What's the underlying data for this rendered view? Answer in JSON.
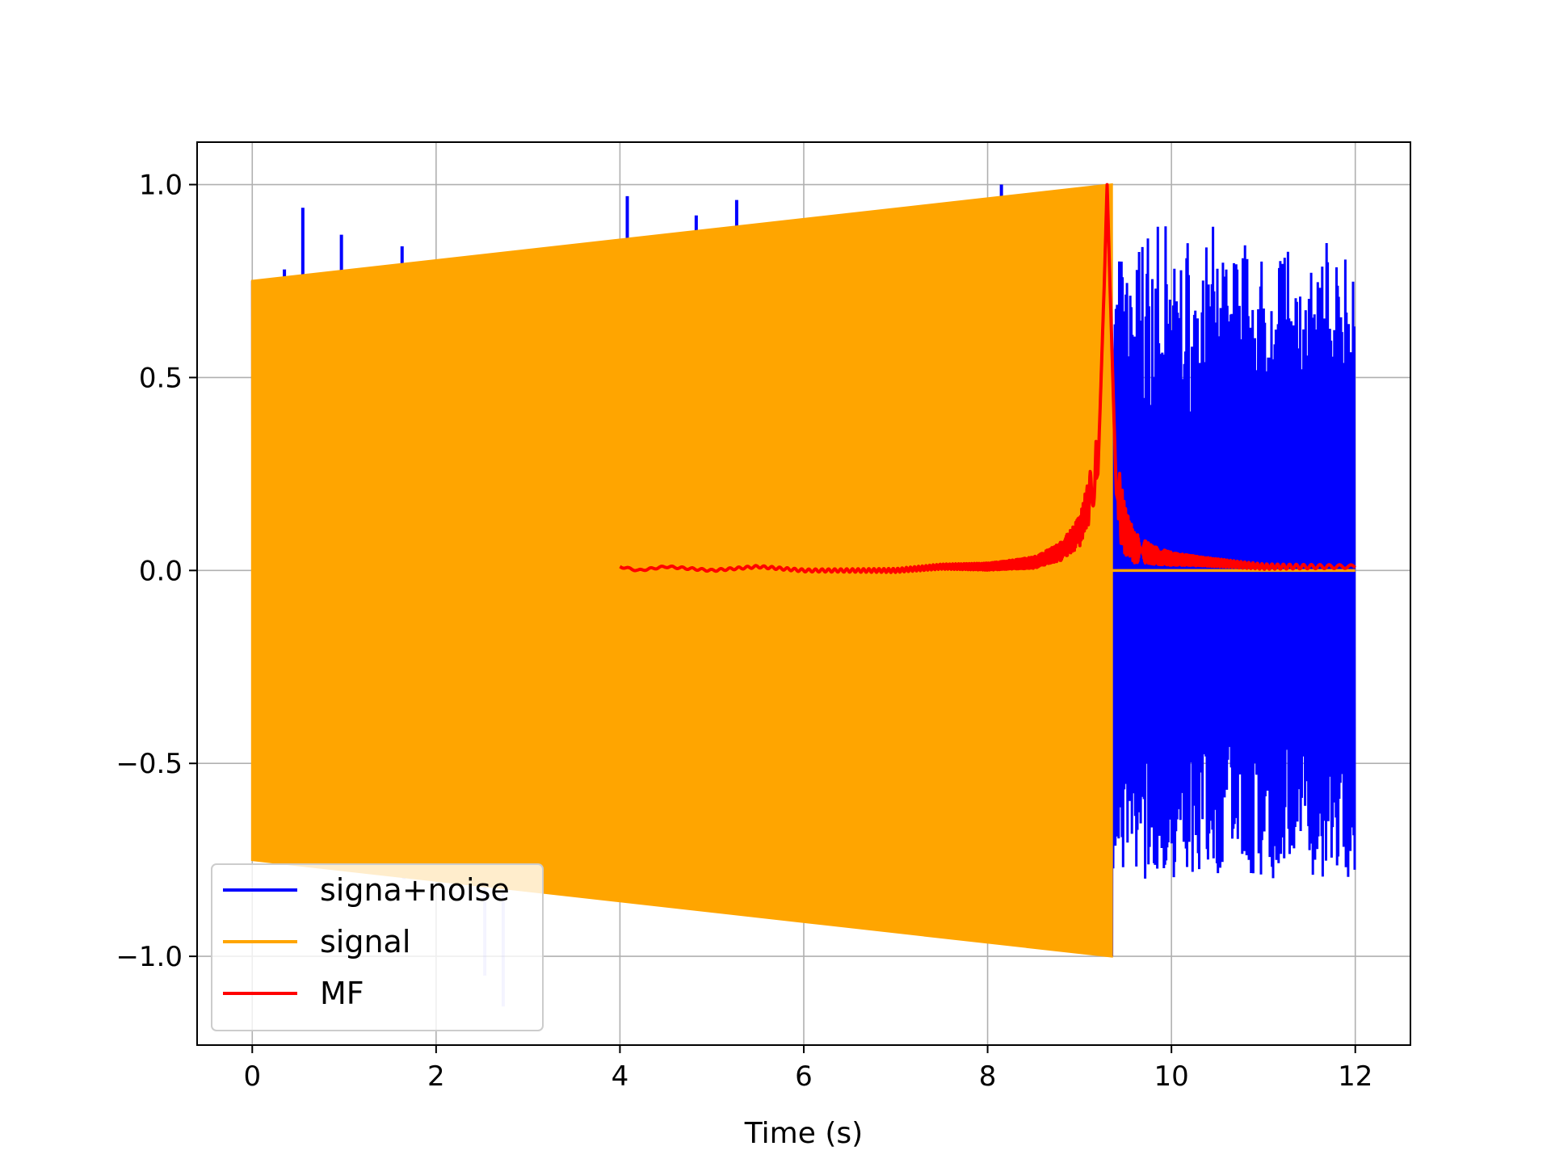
{
  "chart_data": {
    "type": "line",
    "title": "",
    "xlabel": "Time (s)",
    "ylabel": "",
    "xlim": [
      -0.6,
      12.6
    ],
    "ylim": [
      -1.23,
      1.11
    ],
    "xticks": [
      0,
      2,
      4,
      6,
      8,
      10,
      12
    ],
    "xtick_labels": [
      "0",
      "2",
      "4",
      "6",
      "8",
      "10",
      "12"
    ],
    "yticks": [
      -1.0,
      -0.5,
      0.0,
      0.5,
      1.0
    ],
    "ytick_labels": [
      "−1.0",
      "−0.5",
      "0.0",
      "0.5",
      "1.0"
    ],
    "grid": true,
    "legend_position": "lower-left",
    "series": [
      {
        "name": "signa+noise",
        "color": "#0000ff",
        "description_envelope": {
          "x": [
            0,
            9.35,
            9.35,
            12
          ],
          "upper": [
            0.75,
            1.0,
            0.65,
            0.6
          ],
          "lower": [
            -0.75,
            -1.0,
            -0.75,
            -0.75
          ]
        },
        "spikes": [
          {
            "x": 0.35,
            "y": 0.78
          },
          {
            "x": 0.55,
            "y": 0.94
          },
          {
            "x": 0.97,
            "y": 0.87
          },
          {
            "x": 1.63,
            "y": 0.84
          },
          {
            "x": 4.08,
            "y": 0.97
          },
          {
            "x": 4.7,
            "y": 0.84
          },
          {
            "x": 4.83,
            "y": 0.92
          },
          {
            "x": 5.27,
            "y": 0.96
          },
          {
            "x": 8.15,
            "y": 1.0
          },
          {
            "x": 1.65,
            "y": -0.8
          },
          {
            "x": 1.73,
            "y": -0.8
          },
          {
            "x": 2.53,
            "y": -1.05
          },
          {
            "x": 2.73,
            "y": -1.13
          }
        ]
      },
      {
        "name": "signal",
        "color": "#ffa500",
        "description_envelope": {
          "x": [
            0,
            9.35,
            9.35,
            12
          ],
          "upper": [
            0.75,
            1.0,
            0.0,
            0.0
          ],
          "lower": [
            -0.75,
            -1.0,
            0.0,
            0.0
          ]
        }
      },
      {
        "name": "MF",
        "color": "#ff0000",
        "x": [
          4.0,
          4.2,
          4.5,
          5.0,
          5.5,
          6.0,
          6.5,
          7.0,
          7.5,
          8.0,
          8.5,
          8.8,
          9.0,
          9.1,
          9.2,
          9.27,
          9.3,
          9.33,
          9.4,
          9.5,
          9.6,
          9.8,
          10.0,
          10.5,
          11.0,
          11.5,
          12.0
        ],
        "values": [
          0.01,
          0.0,
          0.01,
          0.0,
          0.01,
          0.0,
          0.0,
          0.0,
          0.01,
          0.01,
          0.02,
          0.05,
          0.1,
          0.18,
          0.25,
          0.75,
          1.0,
          0.75,
          0.2,
          0.1,
          0.06,
          0.04,
          0.03,
          0.02,
          0.01,
          0.01,
          0.01
        ]
      }
    ]
  }
}
